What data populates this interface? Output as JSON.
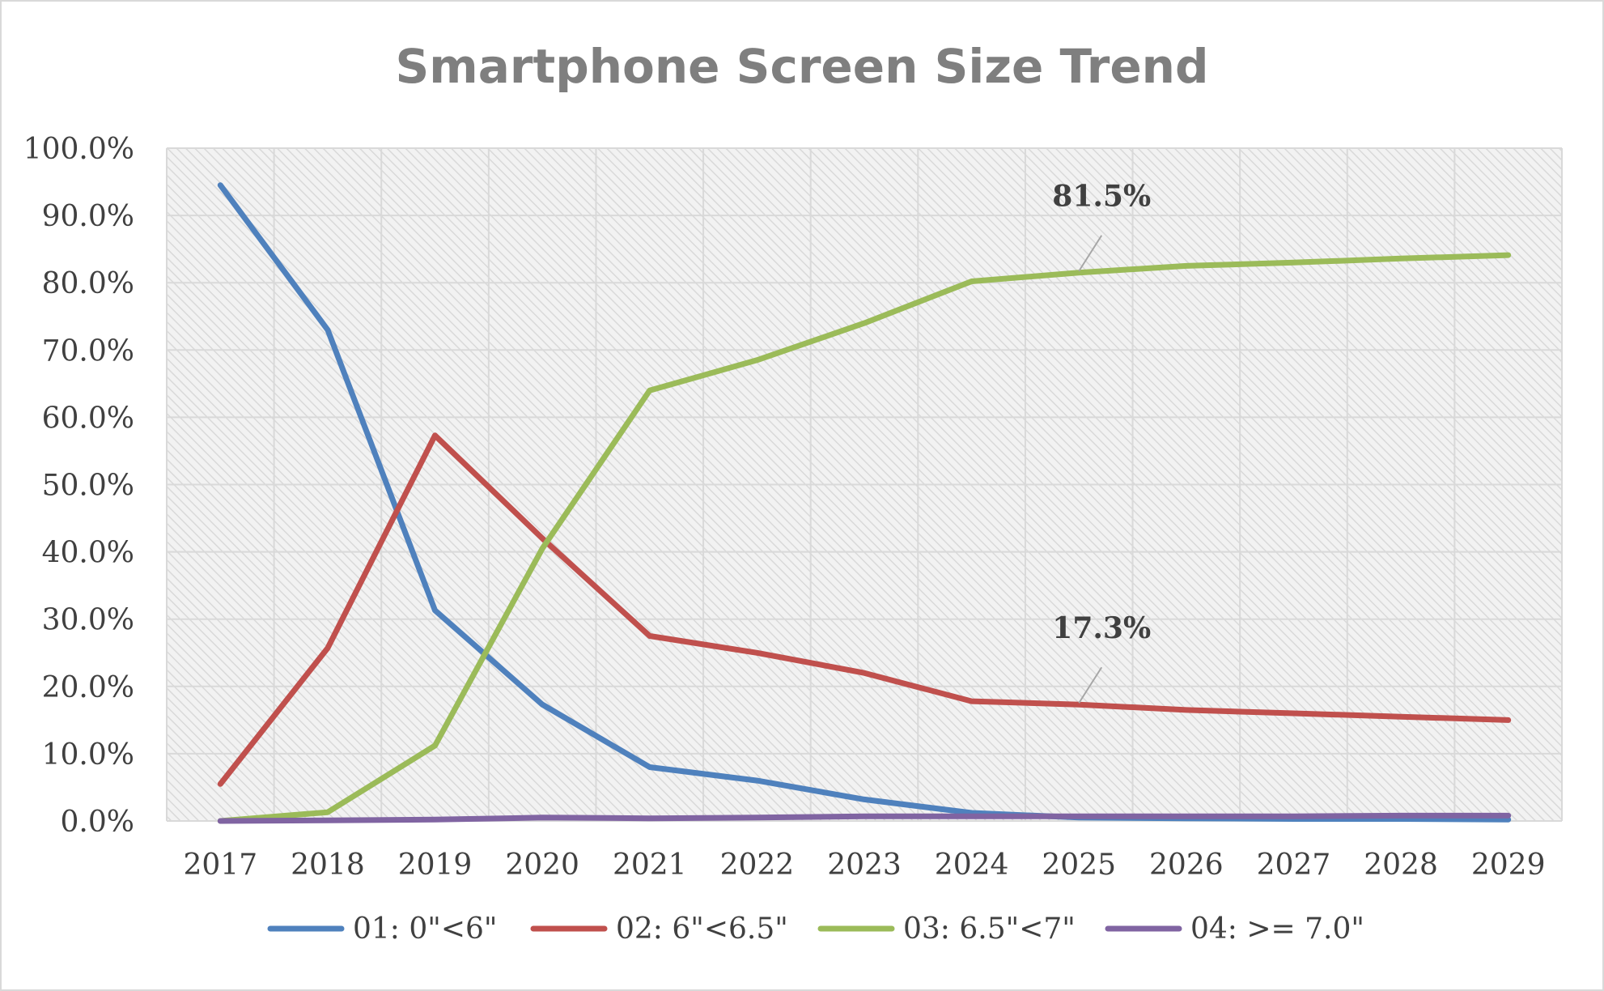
{
  "chart_data": {
    "type": "line",
    "title": "Smartphone Screen Size Trend",
    "xlabel": "",
    "ylabel": "",
    "categories": [
      "2017",
      "2018",
      "2019",
      "2020",
      "2021",
      "2022",
      "2023",
      "2024",
      "2025",
      "2026",
      "2027",
      "2028",
      "2029"
    ],
    "y_ticks": [
      "0.0%",
      "10.0%",
      "20.0%",
      "30.0%",
      "40.0%",
      "50.0%",
      "60.0%",
      "70.0%",
      "80.0%",
      "90.0%",
      "100.0%"
    ],
    "ylim": [
      0,
      100
    ],
    "grid": true,
    "legend_position": "bottom",
    "series": [
      {
        "name": "01: 0\"<6\"",
        "color": "#4f81bd",
        "values": [
          94.5,
          73.0,
          31.3,
          17.3,
          8.0,
          6.0,
          3.2,
          1.2,
          0.5,
          0.4,
          0.3,
          0.3,
          0.2
        ]
      },
      {
        "name": "02: 6\"<6.5\"",
        "color": "#c0504d",
        "values": [
          5.5,
          25.7,
          57.3,
          42.0,
          27.5,
          25.0,
          22.0,
          17.8,
          17.3,
          16.5,
          16.0,
          15.5,
          15.0
        ]
      },
      {
        "name": "03: 6.5\"<7\"",
        "color": "#9bbb59",
        "values": [
          0.0,
          1.3,
          11.2,
          40.5,
          64.0,
          68.5,
          74.0,
          80.2,
          81.5,
          82.5,
          83.0,
          83.6,
          84.1
        ]
      },
      {
        "name": "04: >= 7.0\"",
        "color": "#8064a2",
        "values": [
          0.0,
          0.1,
          0.2,
          0.5,
          0.4,
          0.5,
          0.7,
          0.7,
          0.7,
          0.7,
          0.7,
          0.8,
          0.8
        ]
      }
    ],
    "annotations": [
      {
        "text": "81.5%",
        "series": 2,
        "x": "2025",
        "y": 81.5
      },
      {
        "text": "17.3%",
        "series": 1,
        "x": "2025",
        "y": 17.3
      }
    ]
  }
}
